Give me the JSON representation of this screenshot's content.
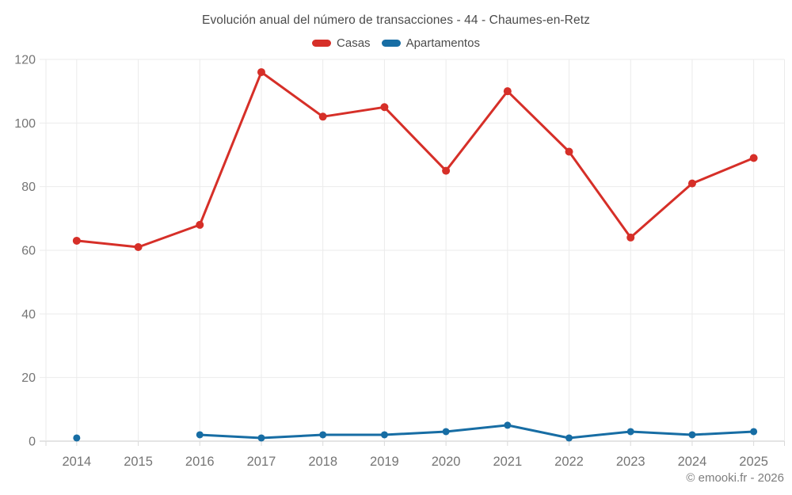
{
  "title": "Evolución anual del número de transacciones - 44 - Chaumes-en-Retz",
  "legend": [
    {
      "label": "Casas",
      "color": "#d62f28"
    },
    {
      "label": "Apartamentos",
      "color": "#176da4"
    }
  ],
  "footer": "© emooki.fr - 2026",
  "colors": {
    "grid": "#ebebeb",
    "axis": "#c9c9c9",
    "tick": "#d9d9d9",
    "tick_label": "#757575"
  },
  "chart_data": {
    "type": "line",
    "title": "Evolución anual del número de transacciones - 44 - Chaumes-en-Retz",
    "categories": [
      "2014",
      "2015",
      "2016",
      "2017",
      "2018",
      "2019",
      "2020",
      "2021",
      "2022",
      "2023",
      "2024",
      "2025"
    ],
    "series": [
      {
        "name": "Casas",
        "color": "#d62f28",
        "values": [
          63,
          61,
          68,
          116,
          102,
          105,
          85,
          110,
          91,
          64,
          81,
          89
        ]
      },
      {
        "name": "Apartamentos",
        "color": "#176da4",
        "values": [
          1,
          null,
          2,
          1,
          2,
          2,
          3,
          5,
          1,
          3,
          2,
          3
        ]
      }
    ],
    "xlabel": "",
    "ylabel": "",
    "ylim": [
      0,
      120
    ],
    "yticks": [
      0,
      20,
      40,
      60,
      80,
      100,
      120
    ],
    "grid": true,
    "legend_position": "top"
  }
}
